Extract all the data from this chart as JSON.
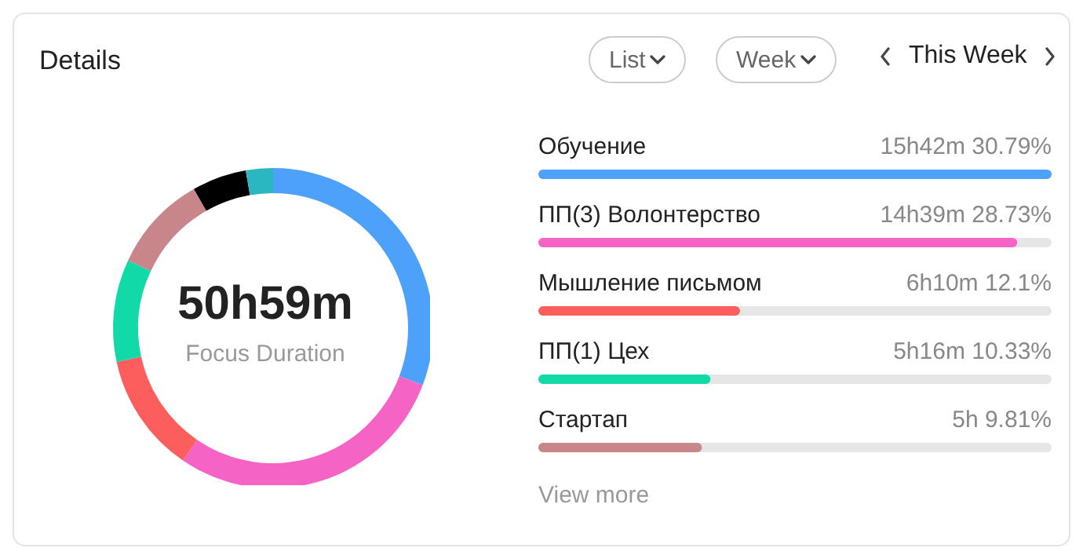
{
  "chart_data": [
    {
      "type": "donut",
      "title": "Details",
      "categories": [
        null,
        null,
        null,
        null,
        null,
        null,
        null
      ],
      "values": [
        30.79,
        28.73,
        12.1,
        10.33,
        9.81,
        5.5,
        2.74
      ],
      "colors": [
        "#4ea1f8",
        "#f564c4",
        "#fc5e5e",
        "#12d9a8",
        "#c8868a",
        "#000000",
        "#2bb7c2"
      ],
      "annotations": [
        "50h59m",
        "Focus Duration",
        "List",
        "Week",
        "This Week"
      ]
    },
    {
      "type": "bar",
      "orientation": "horizontal",
      "categories": [
        "Обучение",
        "ПП(3) Волонтерство",
        "Мышление письмом",
        "ПП(1) Цех",
        "Стартап"
      ],
      "values": [
        30.79,
        28.73,
        12.1,
        10.33,
        9.81
      ],
      "value_labels": [
        "15h42m 30.79%",
        "14h39m 28.73%",
        "6h10m 12.1%",
        "5h16m 10.33%",
        "5h 9.81%"
      ],
      "colors": [
        "#4ea1f8",
        "#f564c4",
        "#fc5e5e",
        "#12d9a8",
        "#c8868a"
      ],
      "annotations": [
        "View more"
      ]
    }
  ]
}
